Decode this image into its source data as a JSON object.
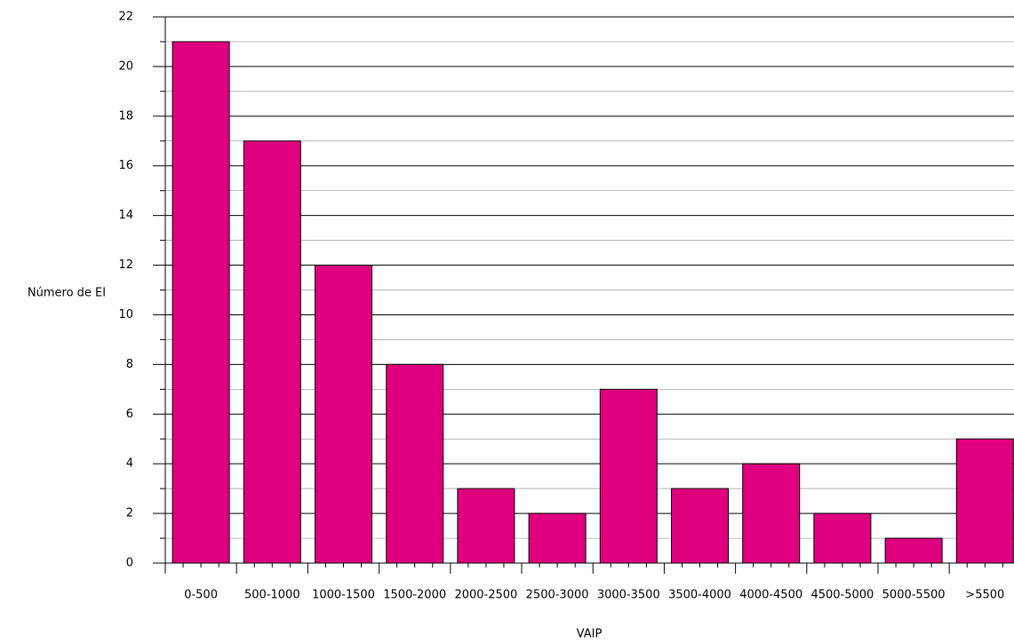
{
  "chart_data": {
    "type": "bar",
    "title": "",
    "xlabel": "VAIP",
    "ylabel": "Número de EI",
    "categories": [
      "0-500",
      "500-1000",
      "1000-1500",
      "1500-2000",
      "2000-2500",
      "2500-3000",
      "3000-3500",
      "3500-4000",
      "4000-4500",
      "4500-5000",
      "5000-5500",
      ">5500"
    ],
    "values": [
      21,
      17,
      12,
      8,
      3,
      2,
      7,
      3,
      4,
      2,
      1,
      5
    ],
    "ylim": [
      0,
      22
    ],
    "yticks": [
      0,
      2,
      4,
      6,
      8,
      10,
      12,
      14,
      16,
      18,
      20,
      22
    ],
    "grid": true,
    "colors": {
      "bar": "#E0007F",
      "bar_edge": "#000000",
      "major_grid": "#000000",
      "minor_grid": "#9a9a9a"
    }
  }
}
